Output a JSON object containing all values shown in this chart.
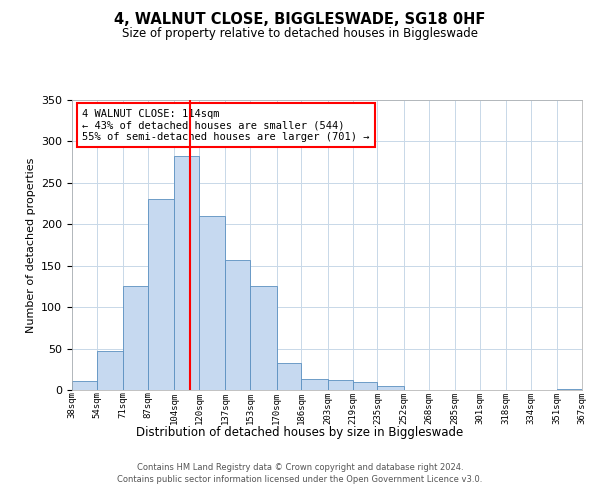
{
  "title": "4, WALNUT CLOSE, BIGGLESWADE, SG18 0HF",
  "subtitle": "Size of property relative to detached houses in Biggleswade",
  "xlabel": "Distribution of detached houses by size in Biggleswade",
  "ylabel": "Number of detached properties",
  "bar_edges": [
    38,
    54,
    71,
    87,
    104,
    120,
    137,
    153,
    170,
    186,
    203,
    219,
    235,
    252,
    268,
    285,
    301,
    318,
    334,
    351,
    367
  ],
  "bar_heights": [
    11,
    47,
    126,
    231,
    282,
    210,
    157,
    125,
    33,
    13,
    12,
    10,
    5,
    0,
    0,
    0,
    0,
    0,
    0,
    1
  ],
  "bar_color": "#c6d9f0",
  "bar_edge_color": "#5a8fc0",
  "vline_x": 114,
  "vline_color": "red",
  "annotation_title": "4 WALNUT CLOSE: 114sqm",
  "annotation_line1": "← 43% of detached houses are smaller (544)",
  "annotation_line2": "55% of semi-detached houses are larger (701) →",
  "annotation_box_color": "red",
  "annotation_box_facecolor": "white",
  "ylim": [
    0,
    350
  ],
  "yticks": [
    0,
    50,
    100,
    150,
    200,
    250,
    300,
    350
  ],
  "tick_labels": [
    "38sqm",
    "54sqm",
    "71sqm",
    "87sqm",
    "104sqm",
    "120sqm",
    "137sqm",
    "153sqm",
    "170sqm",
    "186sqm",
    "203sqm",
    "219sqm",
    "235sqm",
    "252sqm",
    "268sqm",
    "285sqm",
    "301sqm",
    "318sqm",
    "334sqm",
    "351sqm",
    "367sqm"
  ],
  "footer1": "Contains HM Land Registry data © Crown copyright and database right 2024.",
  "footer2": "Contains public sector information licensed under the Open Government Licence v3.0.",
  "bg_color": "white",
  "grid_color": "#c8d8e8"
}
